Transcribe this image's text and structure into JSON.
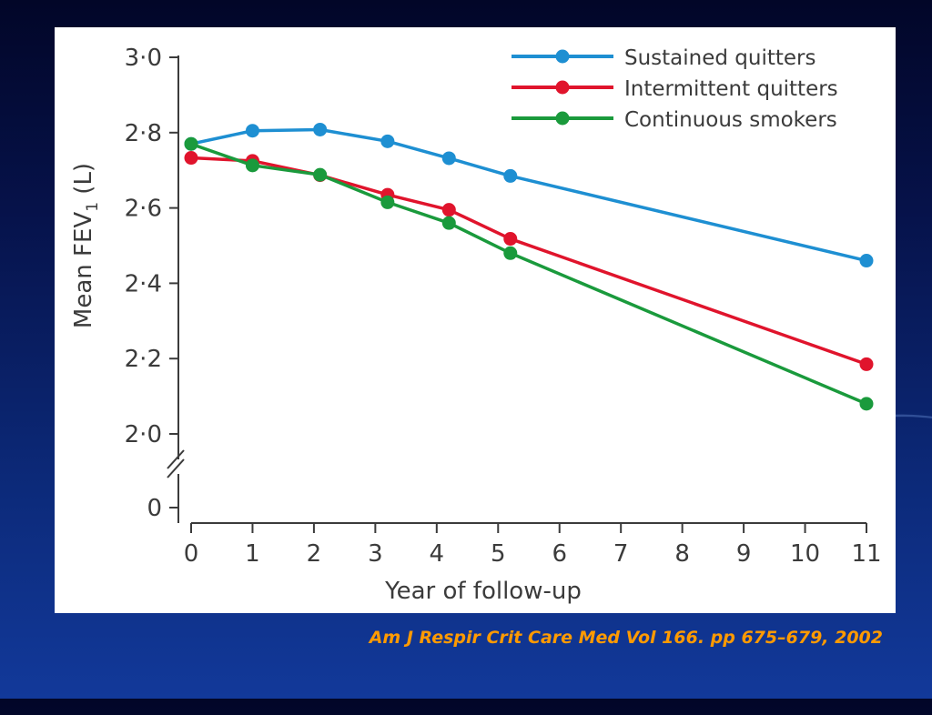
{
  "colors": {
    "sustained": "#1e8fd2",
    "intermittent": "#e0142c",
    "continuous": "#1a9a3c",
    "citation": "#ff9a00"
  },
  "citation": "Am J Respir Crit Care Med Vol 166. pp 675–679, 2002",
  "chart_data": {
    "type": "line",
    "title": "",
    "xlabel": "Year of follow-up",
    "ylabel_main": "Mean FEV",
    "ylabel_sub": "1",
    "ylabel_unit": " (L)",
    "xlim": [
      0,
      11
    ],
    "ylim": [
      2.0,
      3.0
    ],
    "x_ticks": [
      "0",
      "1",
      "2",
      "3",
      "4",
      "5",
      "6",
      "7",
      "8",
      "9",
      "10",
      "11"
    ],
    "y_ticks": [
      {
        "value": 2.0,
        "label": "2·0"
      },
      {
        "value": 2.2,
        "label": "2·2"
      },
      {
        "value": 2.4,
        "label": "2·4"
      },
      {
        "value": 2.6,
        "label": "2·6"
      },
      {
        "value": 2.8,
        "label": "2·8"
      },
      {
        "value": 3.0,
        "label": "3·0"
      }
    ],
    "y_break_label": "0",
    "grid": false,
    "legend_position": "top-right",
    "series": [
      {
        "name": "Sustained quitters",
        "color_key": "sustained",
        "x": [
          0,
          1,
          2.1,
          3.2,
          4.2,
          5.2,
          11
        ],
        "y": [
          2.77,
          2.805,
          2.808,
          2.777,
          2.732,
          2.685,
          2.46
        ]
      },
      {
        "name": "Intermittent quitters",
        "color_key": "intermittent",
        "x": [
          0,
          1,
          2.1,
          3.2,
          4.2,
          5.2,
          11
        ],
        "y": [
          2.733,
          2.725,
          2.687,
          2.635,
          2.595,
          2.518,
          2.185
        ]
      },
      {
        "name": "Continuous smokers",
        "color_key": "continuous",
        "x": [
          0,
          1,
          2.1,
          3.2,
          4.2,
          5.2,
          11
        ],
        "y": [
          2.77,
          2.713,
          2.688,
          2.615,
          2.56,
          2.48,
          2.08
        ]
      }
    ]
  }
}
